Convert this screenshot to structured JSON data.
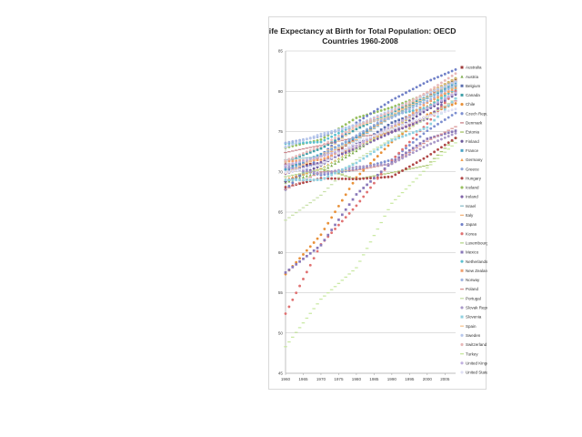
{
  "chart_data": {
    "type": "scatter",
    "title_lines": [
      "Life Expectancy at Birth for Total Population: OECD",
      "Countries 1960-2008"
    ],
    "xlabel": "",
    "ylabel": "",
    "xlim": [
      1960,
      2008
    ],
    "ylim": [
      45,
      85
    ],
    "x_ticks": [
      1960,
      1965,
      1970,
      1975,
      1980,
      1985,
      1990,
      1995,
      2000,
      2005
    ],
    "y_ticks": [
      45,
      50,
      55,
      60,
      65,
      70,
      75,
      80,
      85
    ],
    "grid": true,
    "legend_position": "right",
    "series": [
      {
        "name": "Australia",
        "color": "#9e3b3b",
        "marker": "square",
        "points": [
          [
            1960,
            70.9
          ],
          [
            1970,
            71.0
          ],
          [
            1980,
            74.3
          ],
          [
            1990,
            76.9
          ],
          [
            2000,
            79.3
          ],
          [
            2008,
            81.4
          ]
        ]
      },
      {
        "name": "Austria",
        "color": "#7fae4f",
        "marker": "triangle",
        "points": [
          [
            1960,
            68.7
          ],
          [
            1970,
            70.0
          ],
          [
            1980,
            72.6
          ],
          [
            1990,
            75.6
          ],
          [
            2000,
            78.1
          ],
          [
            2008,
            80.5
          ]
        ]
      },
      {
        "name": "Belgium",
        "color": "#5b6fb0",
        "marker": "square",
        "points": [
          [
            1960,
            70.3
          ],
          [
            1970,
            71.0
          ],
          [
            1980,
            73.2
          ],
          [
            1990,
            76.1
          ],
          [
            2000,
            77.8
          ],
          [
            2008,
            79.8
          ]
        ]
      },
      {
        "name": "Canada",
        "color": "#40a0a8",
        "marker": "square",
        "points": [
          [
            1960,
            71.3
          ],
          [
            1970,
            72.9
          ],
          [
            1980,
            75.3
          ],
          [
            1990,
            77.4
          ],
          [
            2000,
            79.3
          ],
          [
            2008,
            80.7
          ]
        ]
      },
      {
        "name": "Chile",
        "color": "#e8913a",
        "marker": "circle",
        "points": [
          [
            1960,
            57.3
          ],
          [
            1970,
            62.2
          ],
          [
            1980,
            69.3
          ],
          [
            1990,
            73.7
          ],
          [
            2000,
            77.1
          ],
          [
            2008,
            78.5
          ]
        ]
      },
      {
        "name": "Czech Republic",
        "color": "#7d8fd0",
        "marker": "circle",
        "points": [
          [
            1960,
            70.7
          ],
          [
            1970,
            69.6
          ],
          [
            1980,
            70.3
          ],
          [
            1990,
            71.5
          ],
          [
            2000,
            75.1
          ],
          [
            2008,
            77.3
          ]
        ]
      },
      {
        "name": "Denmark",
        "color": "#c9848a",
        "marker": "dash",
        "points": [
          [
            1960,
            72.4
          ],
          [
            1970,
            73.3
          ],
          [
            1980,
            74.3
          ],
          [
            1990,
            74.9
          ],
          [
            2000,
            76.9
          ],
          [
            2008,
            78.8
          ]
        ]
      },
      {
        "name": "Estonia",
        "color": "#a8c46c",
        "marker": "dash",
        "points": [
          [
            1960,
            68.8
          ],
          [
            1970,
            70.4
          ],
          [
            1980,
            69.1
          ],
          [
            1990,
            69.9
          ],
          [
            2000,
            70.8
          ],
          [
            2008,
            74.2
          ]
        ]
      },
      {
        "name": "Finland",
        "color": "#6b5a9b",
        "marker": "circle",
        "points": [
          [
            1960,
            68.8
          ],
          [
            1970,
            70.8
          ],
          [
            1980,
            73.6
          ],
          [
            1990,
            75.0
          ],
          [
            2000,
            77.7
          ],
          [
            2008,
            79.6
          ]
        ]
      },
      {
        "name": "France",
        "color": "#4aa3c6",
        "marker": "square",
        "points": [
          [
            1960,
            70.3
          ],
          [
            1970,
            72.2
          ],
          [
            1980,
            74.3
          ],
          [
            1990,
            77.0
          ],
          [
            2000,
            79.2
          ],
          [
            2008,
            81.0
          ]
        ]
      },
      {
        "name": "Germany",
        "color": "#f0a050",
        "marker": "triangle",
        "points": [
          [
            1960,
            69.1
          ],
          [
            1970,
            70.4
          ],
          [
            1980,
            72.9
          ],
          [
            1990,
            75.3
          ],
          [
            2000,
            78.2
          ],
          [
            2008,
            80.2
          ]
        ]
      },
      {
        "name": "Greece",
        "color": "#8fa7d8",
        "marker": "circle",
        "points": [
          [
            1960,
            69.9
          ],
          [
            1970,
            72.0
          ],
          [
            1980,
            74.5
          ],
          [
            1990,
            77.1
          ],
          [
            2000,
            77.9
          ],
          [
            2008,
            79.8
          ]
        ]
      },
      {
        "name": "Hungary",
        "color": "#b04848",
        "marker": "circle",
        "points": [
          [
            1960,
            68.1
          ],
          [
            1970,
            69.2
          ],
          [
            1980,
            69.1
          ],
          [
            1990,
            69.4
          ],
          [
            2000,
            71.9
          ],
          [
            2008,
            74.2
          ]
        ]
      },
      {
        "name": "Iceland",
        "color": "#98c060",
        "marker": "circle",
        "points": [
          [
            1960,
            73.0
          ],
          [
            1970,
            74.0
          ],
          [
            1980,
            76.7
          ],
          [
            1990,
            78.0
          ],
          [
            2000,
            79.7
          ],
          [
            2008,
            81.6
          ]
        ]
      },
      {
        "name": "Ireland",
        "color": "#8063a8",
        "marker": "circle",
        "points": [
          [
            1960,
            69.8
          ],
          [
            1970,
            71.2
          ],
          [
            1980,
            72.9
          ],
          [
            1990,
            74.9
          ],
          [
            2000,
            76.6
          ],
          [
            2008,
            80.0
          ]
        ]
      },
      {
        "name": "Israel",
        "color": "#8fc0cc",
        "marker": "dash",
        "points": [
          [
            1960,
            71.5
          ],
          [
            1970,
            71.9
          ],
          [
            1980,
            73.9
          ],
          [
            1990,
            76.8
          ],
          [
            2000,
            79.1
          ],
          [
            2008,
            81.2
          ]
        ]
      },
      {
        "name": "Italy",
        "color": "#f2b37a",
        "marker": "dash",
        "points": [
          [
            1960,
            69.8
          ],
          [
            1970,
            71.9
          ],
          [
            1980,
            74.0
          ],
          [
            1990,
            77.0
          ],
          [
            2000,
            79.8
          ],
          [
            2008,
            81.6
          ]
        ]
      },
      {
        "name": "Japan",
        "color": "#7080c8",
        "marker": "circle",
        "points": [
          [
            1960,
            67.8
          ],
          [
            1970,
            72.0
          ],
          [
            1980,
            76.1
          ],
          [
            1990,
            78.9
          ],
          [
            2000,
            81.2
          ],
          [
            2008,
            82.7
          ]
        ]
      },
      {
        "name": "Korea",
        "color": "#e07272",
        "marker": "circle",
        "points": [
          [
            1960,
            52.4
          ],
          [
            1970,
            61.0
          ],
          [
            1980,
            65.8
          ],
          [
            1990,
            71.4
          ],
          [
            2000,
            76.0
          ],
          [
            2008,
            80.1
          ]
        ]
      },
      {
        "name": "Luxembourg",
        "color": "#b8d890",
        "marker": "dash",
        "points": [
          [
            1960,
            69.4
          ],
          [
            1970,
            70.3
          ],
          [
            1980,
            72.8
          ],
          [
            1990,
            75.4
          ],
          [
            2000,
            78.0
          ],
          [
            2008,
            80.7
          ]
        ]
      },
      {
        "name": "Mexico",
        "color": "#8a78b8",
        "marker": "square",
        "points": [
          [
            1960,
            57.5
          ],
          [
            1970,
            60.9
          ],
          [
            1980,
            67.2
          ],
          [
            1990,
            71.2
          ],
          [
            2000,
            74.1
          ],
          [
            2008,
            75.1
          ]
        ]
      },
      {
        "name": "Netherlands",
        "color": "#5cc0d0",
        "marker": "circle",
        "points": [
          [
            1960,
            73.5
          ],
          [
            1970,
            73.7
          ],
          [
            1980,
            75.9
          ],
          [
            1990,
            77.0
          ],
          [
            2000,
            78.0
          ],
          [
            2008,
            80.3
          ]
        ]
      },
      {
        "name": "New Zealand",
        "color": "#f0a070",
        "marker": "square",
        "points": [
          [
            1960,
            71.3
          ],
          [
            1970,
            71.5
          ],
          [
            1980,
            73.2
          ],
          [
            1990,
            75.4
          ],
          [
            2000,
            78.6
          ],
          [
            2008,
            80.4
          ]
        ]
      },
      {
        "name": "Norway",
        "color": "#a0b4e0",
        "marker": "circle",
        "points": [
          [
            1960,
            73.6
          ],
          [
            1970,
            74.4
          ],
          [
            1980,
            75.9
          ],
          [
            1990,
            76.7
          ],
          [
            2000,
            78.8
          ],
          [
            2008,
            80.8
          ]
        ]
      },
      {
        "name": "Poland",
        "color": "#d89090",
        "marker": "dash",
        "points": [
          [
            1960,
            67.8
          ],
          [
            1970,
            70.0
          ],
          [
            1980,
            70.2
          ],
          [
            1990,
            71.0
          ],
          [
            2000,
            73.8
          ],
          [
            2008,
            75.6
          ]
        ]
      },
      {
        "name": "Portugal",
        "color": "#c8e0a8",
        "marker": "dash",
        "points": [
          [
            1960,
            64.0
          ],
          [
            1970,
            67.1
          ],
          [
            1980,
            71.5
          ],
          [
            1990,
            74.1
          ],
          [
            2000,
            76.7
          ],
          [
            2008,
            79.1
          ]
        ]
      },
      {
        "name": "Slovak Republic",
        "color": "#a898c8",
        "marker": "circle",
        "points": [
          [
            1960,
            70.6
          ],
          [
            1970,
            69.8
          ],
          [
            1980,
            70.6
          ],
          [
            1990,
            71.0
          ],
          [
            2000,
            73.3
          ],
          [
            2008,
            74.8
          ]
        ]
      },
      {
        "name": "Slovenia",
        "color": "#90d0e0",
        "marker": "square",
        "points": [
          [
            1960,
            69.0
          ],
          [
            1970,
            69.0
          ],
          [
            1980,
            71.1
          ],
          [
            1990,
            73.9
          ],
          [
            2000,
            75.5
          ],
          [
            2008,
            79.1
          ]
        ]
      },
      {
        "name": "Spain",
        "color": "#f6c898",
        "marker": "dash",
        "points": [
          [
            1960,
            69.8
          ],
          [
            1970,
            72.0
          ],
          [
            1980,
            75.6
          ],
          [
            1990,
            77.0
          ],
          [
            2000,
            79.3
          ],
          [
            2008,
            81.3
          ]
        ]
      },
      {
        "name": "Sweden",
        "color": "#b8c8ec",
        "marker": "circle",
        "points": [
          [
            1960,
            73.1
          ],
          [
            1970,
            74.7
          ],
          [
            1980,
            75.8
          ],
          [
            1990,
            77.7
          ],
          [
            2000,
            79.7
          ],
          [
            2008,
            81.2
          ]
        ]
      },
      {
        "name": "Switzerland",
        "color": "#e8b8b8",
        "marker": "circle",
        "points": [
          [
            1960,
            71.4
          ],
          [
            1970,
            73.2
          ],
          [
            1980,
            75.7
          ],
          [
            1990,
            77.5
          ],
          [
            2000,
            79.9
          ],
          [
            2008,
            82.2
          ]
        ]
      },
      {
        "name": "Turkey",
        "color": "#c8e8a0",
        "marker": "dash",
        "points": [
          [
            1960,
            48.3
          ],
          [
            1970,
            54.2
          ],
          [
            1980,
            58.1
          ],
          [
            1990,
            66.1
          ],
          [
            2000,
            70.5
          ],
          [
            2008,
            73.6
          ]
        ]
      },
      {
        "name": "United Kingdom",
        "color": "#c0b0e0",
        "marker": "circle",
        "points": [
          [
            1960,
            70.8
          ],
          [
            1970,
            71.9
          ],
          [
            1980,
            73.2
          ],
          [
            1990,
            75.7
          ],
          [
            2000,
            77.9
          ],
          [
            2008,
            79.8
          ]
        ]
      },
      {
        "name": "United States",
        "color": "#e0e0f4",
        "marker": "circle",
        "points": [
          [
            1960,
            69.9
          ],
          [
            1970,
            70.9
          ],
          [
            1980,
            73.7
          ],
          [
            1990,
            75.3
          ],
          [
            2000,
            76.9
          ],
          [
            2008,
            77.8
          ]
        ]
      }
    ]
  }
}
